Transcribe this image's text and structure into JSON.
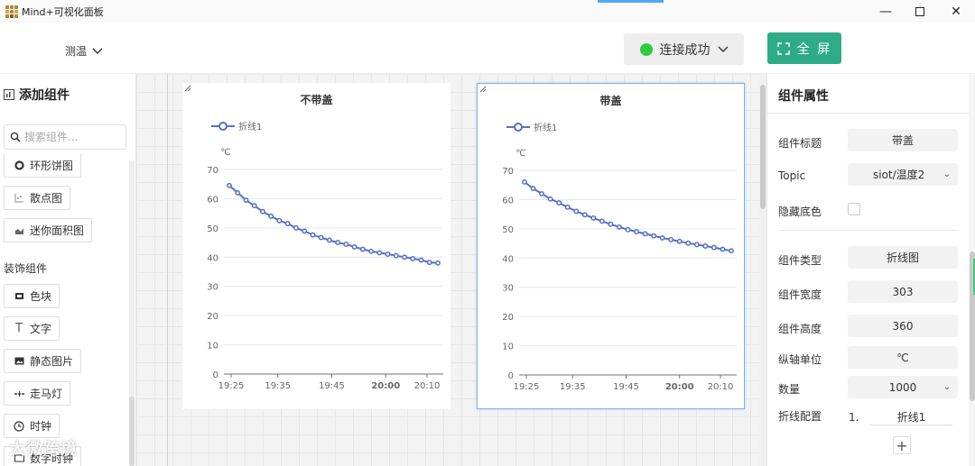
{
  "app": {
    "title": "Mind+可视化面板"
  },
  "header": {
    "project": "测温",
    "connection": {
      "label": "连接成功",
      "status_color": "#2ecc40"
    },
    "fullscreen_label": "全 屏",
    "accent_color": "#2eab87"
  },
  "sidebar": {
    "title": "添加组件",
    "search_placeholder": "搜索组件...",
    "items": [
      {
        "label": "环形饼图",
        "icon": "ring-chart-icon"
      },
      {
        "label": "散点图",
        "icon": "scatter-icon"
      },
      {
        "label": "迷你面积图",
        "icon": "area-chart-icon"
      }
    ],
    "section_decor": "装饰组件",
    "decor_items": [
      {
        "label": "色块",
        "icon": "color-block-icon"
      },
      {
        "label": "文字",
        "icon": "text-icon"
      },
      {
        "label": "静态图片",
        "icon": "image-icon"
      },
      {
        "label": "走马灯",
        "icon": "marquee-icon"
      },
      {
        "label": "时钟",
        "icon": "clock-icon"
      },
      {
        "label": "数字时钟",
        "icon": "digital-clock-icon"
      }
    ]
  },
  "chart_data": [
    {
      "type": "line",
      "title": "不带盖",
      "ylabel": "℃",
      "ylim": [
        0,
        70
      ],
      "yticks": [
        0,
        10,
        20,
        30,
        40,
        50,
        60,
        70
      ],
      "xtick_labels": [
        "19:25",
        "19:35",
        "19:45",
        "20:00",
        "20:10"
      ],
      "legend": "top-left",
      "series": [
        {
          "name": "折线1",
          "color": "#5470c6",
          "values": [
            64.5,
            62.0,
            59.5,
            57.6,
            55.6,
            54.0,
            52.5,
            51.5,
            50.0,
            48.9,
            47.6,
            46.7,
            45.8,
            45.0,
            44.4,
            43.5,
            42.7,
            42.0,
            41.5,
            41.0,
            40.5,
            40.0,
            39.5,
            39.0,
            38.2,
            38.0
          ]
        }
      ]
    },
    {
      "type": "line",
      "title": "带盖",
      "ylabel": "℃",
      "ylim": [
        0,
        70
      ],
      "yticks": [
        0,
        10,
        20,
        30,
        40,
        50,
        60,
        70
      ],
      "xtick_labels": [
        "19:25",
        "19:35",
        "19:45",
        "20:00",
        "20:10"
      ],
      "legend": "top-left",
      "series": [
        {
          "name": "折线1",
          "color": "#5470c6",
          "values": [
            66.0,
            63.8,
            62.0,
            60.2,
            58.9,
            57.4,
            56.0,
            54.8,
            53.7,
            52.6,
            51.6,
            50.6,
            49.7,
            49.0,
            48.3,
            47.6,
            46.9,
            46.3,
            45.7,
            45.1,
            44.6,
            44.1,
            43.6,
            43.0,
            42.5
          ]
        }
      ]
    }
  ],
  "props": {
    "title": "组件属性",
    "rows": [
      {
        "label": "组件标题",
        "value": "带盖",
        "type": "text"
      },
      {
        "label": "Topic",
        "value": "siot/温度2",
        "type": "select"
      },
      {
        "label": "隐藏底色",
        "value": "",
        "type": "checkbox"
      },
      {
        "label": "组件类型",
        "value": "折线图",
        "type": "text"
      },
      {
        "label": "组件宽度",
        "value": "303",
        "type": "text"
      },
      {
        "label": "组件高度",
        "value": "360",
        "type": "text"
      },
      {
        "label": "纵轴单位",
        "value": "℃",
        "type": "text"
      },
      {
        "label": "数量",
        "value": "1000",
        "type": "select"
      }
    ],
    "series_config_label": "折线配置",
    "series_config": [
      {
        "index": "1.",
        "name": "折线1"
      }
    ],
    "add_symbol": "+"
  },
  "watermark": "大微跨境"
}
